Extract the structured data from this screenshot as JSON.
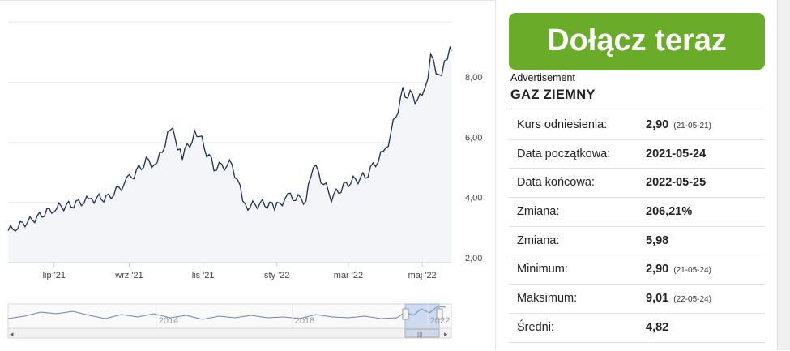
{
  "join": {
    "label": "Dołącz teraz"
  },
  "ad": {
    "label": "Advertisement"
  },
  "panel": {
    "title": "GAZ ZIEMNY"
  },
  "stats": [
    {
      "label": "Kurs odniesienia:",
      "value": "2,90",
      "date": "(21-05-21)"
    },
    {
      "label": "Data początkowa:",
      "value": "2021-05-24",
      "date": ""
    },
    {
      "label": "Data końcowa:",
      "value": "2022-05-25",
      "date": ""
    },
    {
      "label": "Zmiana:",
      "value": "206,21%",
      "date": ""
    },
    {
      "label": "Zmiana:",
      "value": "5,98",
      "date": ""
    },
    {
      "label": "Minimum:",
      "value": "2,90",
      "date": "(21-05-24)"
    },
    {
      "label": "Maksimum:",
      "value": "9,01",
      "date": "(22-05-24)"
    },
    {
      "label": "Średni:",
      "value": "4,82",
      "date": ""
    }
  ],
  "chart_data": {
    "type": "area",
    "title": "",
    "xlabel": "",
    "ylabel": "",
    "ylim": [
      2.0,
      8.0
    ],
    "grid": true,
    "y_ticks": [
      "2,00",
      "4,00",
      "6,00",
      "8,00"
    ],
    "x_ticks": [
      "lip '21",
      "wrz '21",
      "lis '21",
      "sty '22",
      "mar '22",
      "maj '22"
    ],
    "series": [
      {
        "name": "",
        "points": [
          [
            "2021-05-24",
            2.9
          ],
          [
            "2021-06-01",
            3.05
          ],
          [
            "2021-06-15",
            3.3
          ],
          [
            "2021-07-01",
            3.65
          ],
          [
            "2021-07-15",
            3.75
          ],
          [
            "2021-08-01",
            3.95
          ],
          [
            "2021-08-15",
            4.0
          ],
          [
            "2021-09-01",
            4.6
          ],
          [
            "2021-09-15",
            5.2
          ],
          [
            "2021-09-24",
            5.1
          ],
          [
            "2021-10-05",
            6.31
          ],
          [
            "2021-10-15",
            5.4
          ],
          [
            "2021-10-27",
            6.2
          ],
          [
            "2021-11-10",
            5.0
          ],
          [
            "2021-11-25",
            5.1
          ],
          [
            "2021-12-06",
            3.7
          ],
          [
            "2021-12-20",
            3.8
          ],
          [
            "2022-01-01",
            3.7
          ],
          [
            "2022-01-10",
            4.05
          ],
          [
            "2022-01-25",
            3.9
          ],
          [
            "2022-01-31",
            5.1
          ],
          [
            "2022-02-15",
            4.0
          ],
          [
            "2022-03-01",
            4.5
          ],
          [
            "2022-03-15",
            4.7
          ],
          [
            "2022-04-01",
            5.6
          ],
          [
            "2022-04-15",
            7.5
          ],
          [
            "2022-05-01",
            7.2
          ],
          [
            "2022-05-08",
            8.6
          ],
          [
            "2022-05-17",
            8.0
          ],
          [
            "2022-05-24",
            9.01
          ]
        ]
      }
    ],
    "navigator": {
      "x_ticks": [
        "2014",
        "2018",
        "2022"
      ]
    }
  }
}
